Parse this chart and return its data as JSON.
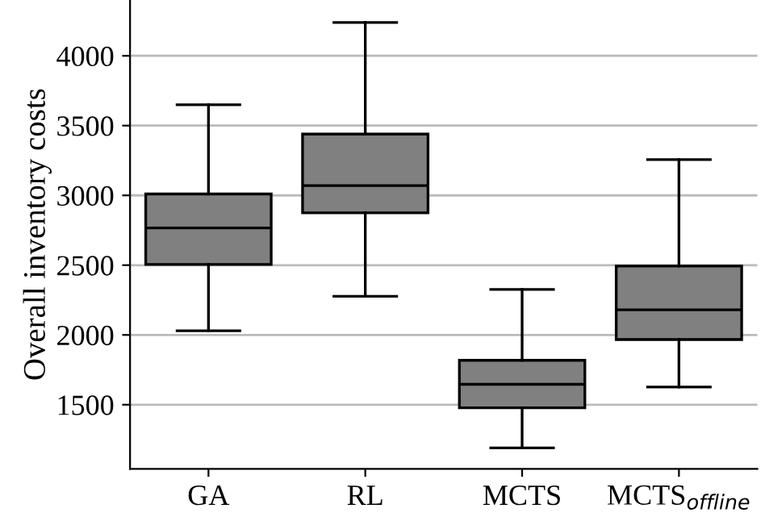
{
  "chart_data": {
    "type": "box",
    "ylabel": "Overall inventory costs",
    "categories": [
      "GA",
      "RL",
      "MCTS",
      "MCTS$_{offline}$"
    ],
    "boxes": [
      {
        "low": 2030,
        "q1": 2505,
        "median": 2767,
        "q3": 3010,
        "high": 3649
      },
      {
        "low": 2277,
        "q1": 2875,
        "median": 3070,
        "q3": 3439,
        "high": 4239
      },
      {
        "low": 1190,
        "q1": 1478,
        "median": 1646,
        "q3": 1818,
        "high": 2326
      },
      {
        "low": 1627,
        "q1": 1967,
        "median": 2180,
        "q3": 2494,
        "high": 3256
      }
    ],
    "color": "#808080",
    "ylim": [
      1040,
      4400
    ],
    "yticks": [
      1500,
      2000,
      2500,
      3000,
      3500,
      4000
    ],
    "grid": "y"
  }
}
